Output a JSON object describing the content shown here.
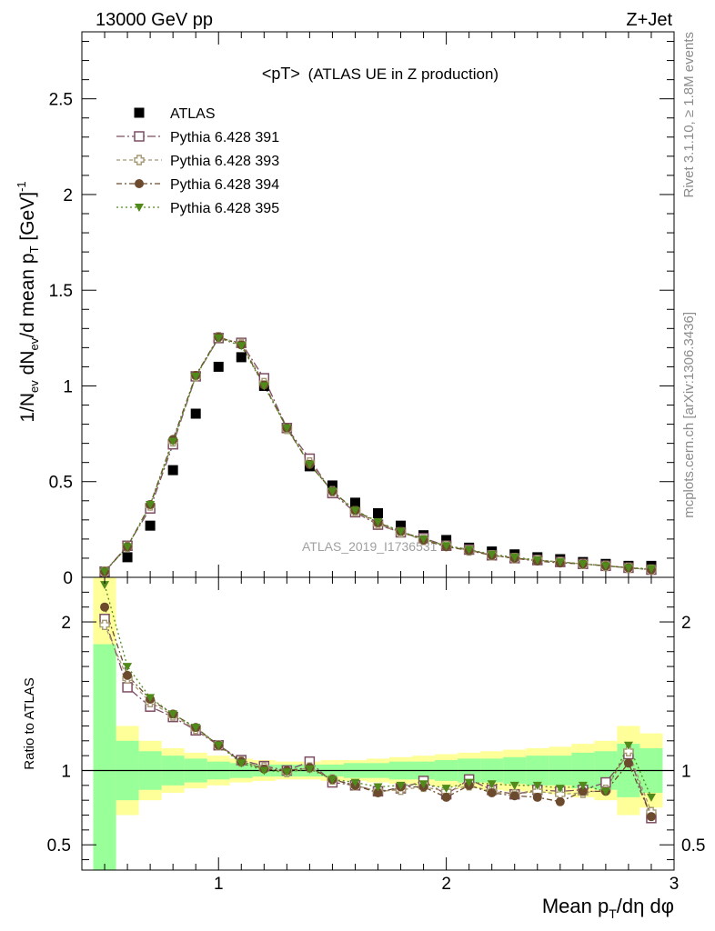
{
  "header": {
    "left": "13000 GeV pp",
    "right": "Z+Jet"
  },
  "plot_title": {
    "main": "<pT>",
    "sub": "(ATLAS UE in Z production)"
  },
  "side_labels": {
    "top": "Rivet 3.1.10, ≥ 1.8M events",
    "bottom": "mcplots.cern.ch [arXiv:1306.3436]"
  },
  "watermark": "ATLAS_2019_I1736531",
  "colors": {
    "atlas": "#000000",
    "p391": "#7d4e62",
    "p393": "#a69a72",
    "p394": "#6b4a2e",
    "p395": "#4f8a1a",
    "band_yellow": "#ffff99",
    "band_green": "#99ff99"
  },
  "chart_data": [
    {
      "type": "scatter",
      "panel": "main",
      "ylabel": "1/N_ev dN_ev/d mean p_T [GeV]^-1",
      "xlim": [
        0.4,
        3.0
      ],
      "ylim": [
        0.0,
        2.85
      ],
      "yticks": [
        "0",
        "0.5",
        "1",
        "1.5",
        "2",
        "2.5"
      ],
      "legend_placement": "top-left",
      "x": [
        0.5,
        0.6,
        0.7,
        0.8,
        0.9,
        1.0,
        1.1,
        1.2,
        1.3,
        1.4,
        1.5,
        1.6,
        1.7,
        1.8,
        1.9,
        2.0,
        2.1,
        2.2,
        2.3,
        2.4,
        2.5,
        2.6,
        2.7,
        2.8,
        2.9
      ],
      "series": [
        {
          "name": "ATLAS",
          "key": "atlas",
          "marker": "square-filled",
          "values": [
            0.015,
            0.105,
            0.27,
            0.56,
            0.855,
            1.1,
            1.15,
            1.0,
            0.78,
            0.58,
            0.48,
            0.39,
            0.335,
            0.27,
            0.22,
            0.195,
            0.155,
            0.135,
            0.12,
            0.105,
            0.095,
            0.08,
            0.07,
            0.06,
            0.06
          ]
        },
        {
          "name": "Pythia 6.428 391",
          "key": "p391",
          "marker": "square-open",
          "values": [
            0.03,
            0.165,
            0.36,
            0.695,
            1.05,
            1.25,
            1.225,
            1.04,
            0.78,
            0.62,
            0.44,
            0.34,
            0.275,
            0.235,
            0.205,
            0.165,
            0.145,
            0.115,
            0.1,
            0.09,
            0.08,
            0.07,
            0.06,
            0.05,
            0.04
          ]
        },
        {
          "name": "Pythia 6.428 393",
          "key": "p393",
          "marker": "cross-open",
          "values": [
            0.03,
            0.16,
            0.375,
            0.71,
            1.05,
            1.255,
            1.22,
            1.015,
            0.775,
            0.6,
            0.45,
            0.345,
            0.28,
            0.235,
            0.195,
            0.165,
            0.14,
            0.115,
            0.1,
            0.09,
            0.08,
            0.07,
            0.06,
            0.05,
            0.04
          ]
        },
        {
          "name": "Pythia 6.428 394",
          "key": "p394",
          "marker": "circle-filled",
          "values": [
            0.03,
            0.16,
            0.38,
            0.72,
            1.055,
            1.255,
            1.215,
            1.005,
            0.78,
            0.59,
            0.45,
            0.35,
            0.285,
            0.24,
            0.195,
            0.16,
            0.14,
            0.115,
            0.1,
            0.085,
            0.075,
            0.07,
            0.06,
            0.05,
            0.04
          ]
        },
        {
          "name": "Pythia 6.428 395",
          "key": "p395",
          "marker": "triangle-down-filled",
          "values": [
            0.03,
            0.16,
            0.38,
            0.71,
            1.05,
            1.25,
            1.21,
            1.0,
            0.78,
            0.59,
            0.45,
            0.35,
            0.29,
            0.24,
            0.2,
            0.165,
            0.145,
            0.12,
            0.105,
            0.09,
            0.08,
            0.07,
            0.06,
            0.05,
            0.045
          ]
        }
      ]
    },
    {
      "type": "scatter",
      "panel": "ratio",
      "ylabel": "Ratio to ATLAS",
      "xlabel": "Mean p_T/dη dφ",
      "xlim": [
        0.4,
        3.0
      ],
      "ylim": [
        0.33,
        2.3
      ],
      "yticks": [
        "0.5",
        "1",
        "2"
      ],
      "xticks": [
        "1",
        "2",
        "3"
      ],
      "x": [
        0.5,
        0.6,
        0.7,
        0.8,
        0.9,
        1.0,
        1.1,
        1.2,
        1.3,
        1.4,
        1.5,
        1.6,
        1.7,
        1.8,
        1.9,
        2.0,
        2.1,
        2.2,
        2.3,
        2.4,
        2.5,
        2.6,
        2.7,
        2.8,
        2.9
      ],
      "bands": {
        "edges": [
          0.45,
          0.55,
          0.65,
          0.75,
          0.85,
          0.95,
          1.05,
          1.15,
          1.25,
          1.35,
          1.45,
          1.55,
          1.65,
          1.75,
          1.85,
          1.95,
          2.05,
          2.15,
          2.25,
          2.35,
          2.45,
          2.55,
          2.65,
          2.75,
          2.85,
          2.95
        ],
        "yellow_low": [
          0.0,
          0.7,
          0.8,
          0.85,
          0.88,
          0.9,
          0.92,
          0.93,
          0.94,
          0.94,
          0.93,
          0.93,
          0.92,
          0.91,
          0.9,
          0.89,
          0.88,
          0.87,
          0.86,
          0.85,
          0.84,
          0.82,
          0.8,
          0.7,
          0.75
        ],
        "yellow_high": [
          2.3,
          1.3,
          1.2,
          1.15,
          1.12,
          1.1,
          1.08,
          1.07,
          1.06,
          1.06,
          1.07,
          1.07,
          1.08,
          1.09,
          1.1,
          1.11,
          1.12,
          1.13,
          1.14,
          1.15,
          1.16,
          1.18,
          1.2,
          1.3,
          1.25
        ],
        "green_low": [
          0.0,
          0.8,
          0.87,
          0.9,
          0.92,
          0.94,
          0.95,
          0.96,
          0.96,
          0.96,
          0.96,
          0.95,
          0.95,
          0.94,
          0.94,
          0.93,
          0.92,
          0.92,
          0.91,
          0.9,
          0.9,
          0.88,
          0.87,
          0.82,
          0.85
        ],
        "green_high": [
          1.85,
          1.2,
          1.13,
          1.1,
          1.08,
          1.06,
          1.05,
          1.04,
          1.04,
          1.04,
          1.04,
          1.05,
          1.05,
          1.06,
          1.06,
          1.07,
          1.08,
          1.08,
          1.09,
          1.1,
          1.1,
          1.12,
          1.13,
          1.18,
          1.15
        ]
      },
      "series": [
        {
          "name": "Pythia 6.428 391",
          "key": "p391",
          "marker": "square-open",
          "values": [
            2.02,
            1.56,
            1.43,
            1.36,
            1.27,
            1.17,
            1.07,
            1.03,
            1.0,
            1.06,
            0.92,
            0.9,
            0.86,
            0.88,
            0.93,
            0.84,
            0.94,
            0.87,
            0.84,
            0.87,
            0.86,
            0.87,
            0.92,
            1.11,
            0.68
          ]
        },
        {
          "name": "Pythia 6.428 393",
          "key": "p393",
          "marker": "cross-open",
          "values": [
            1.98,
            1.62,
            1.46,
            1.37,
            1.28,
            1.17,
            1.06,
            1.02,
            0.99,
            1.02,
            0.94,
            0.9,
            0.86,
            0.87,
            0.89,
            0.86,
            0.9,
            0.86,
            0.84,
            0.86,
            0.84,
            0.85,
            0.87,
            1.13,
            0.72
          ]
        },
        {
          "name": "Pythia 6.428 394",
          "key": "p394",
          "marker": "circle-filled",
          "values": [
            2.1,
            1.64,
            1.48,
            1.38,
            1.29,
            1.17,
            1.06,
            1.01,
            1.0,
            1.02,
            0.94,
            0.9,
            0.85,
            0.89,
            0.89,
            0.82,
            0.9,
            0.85,
            0.83,
            0.82,
            0.79,
            0.86,
            0.86,
            1.05,
            0.69
          ]
        },
        {
          "name": "Pythia 6.428 395",
          "key": "p395",
          "marker": "triangle-down-filled",
          "values": [
            2.25,
            1.7,
            1.49,
            1.38,
            1.29,
            1.17,
            1.05,
            1.0,
            0.99,
            1.01,
            0.94,
            0.92,
            0.89,
            0.9,
            0.91,
            0.88,
            0.92,
            0.91,
            0.9,
            0.9,
            0.88,
            0.9,
            0.86,
            1.17,
            0.82
          ]
        }
      ]
    }
  ]
}
